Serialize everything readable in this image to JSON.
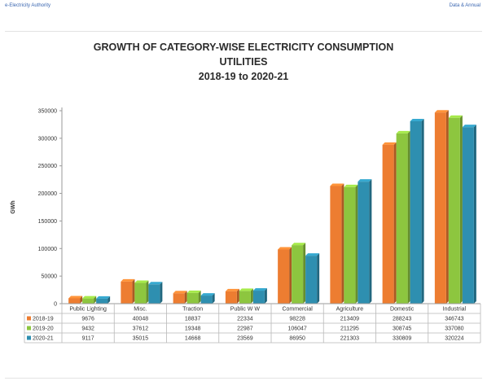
{
  "page": {
    "header_left": "e-Electricity Authority",
    "header_right": "Data & Annual"
  },
  "chart_data": {
    "type": "bar",
    "title_lines": [
      "GROWTH OF CATEGORY-WISE ELECTRICITY CONSUMPTION",
      "UTILITIES",
      "2018-19 to 2020-21"
    ],
    "xlabel": "",
    "ylabel": "GWh",
    "ylim": [
      0,
      350000
    ],
    "yticks": [
      0,
      50000,
      100000,
      150000,
      200000,
      250000,
      300000,
      350000
    ],
    "grid": false,
    "legend_placement": "data-table-left",
    "categories": [
      "Public Lighting",
      "Misc.",
      "Traction",
      "Public W W",
      "Commercial",
      "Agriculture",
      "Domestic",
      "Industrial"
    ],
    "series": [
      {
        "name": "2018-19",
        "color": "#ed7d31",
        "values": [
          9676,
          40048,
          18837,
          22334,
          98228,
          213409,
          288243,
          346743
        ]
      },
      {
        "name": "2019-20",
        "color": "#8dc63f",
        "values": [
          9432,
          37612,
          19348,
          22987,
          106047,
          211295,
          308745,
          337080
        ]
      },
      {
        "name": "2020-21",
        "color": "#2e8fb0",
        "values": [
          9117,
          35015,
          14668,
          23569,
          86950,
          221303,
          330809,
          320224
        ]
      }
    ],
    "show_data_table": true
  }
}
